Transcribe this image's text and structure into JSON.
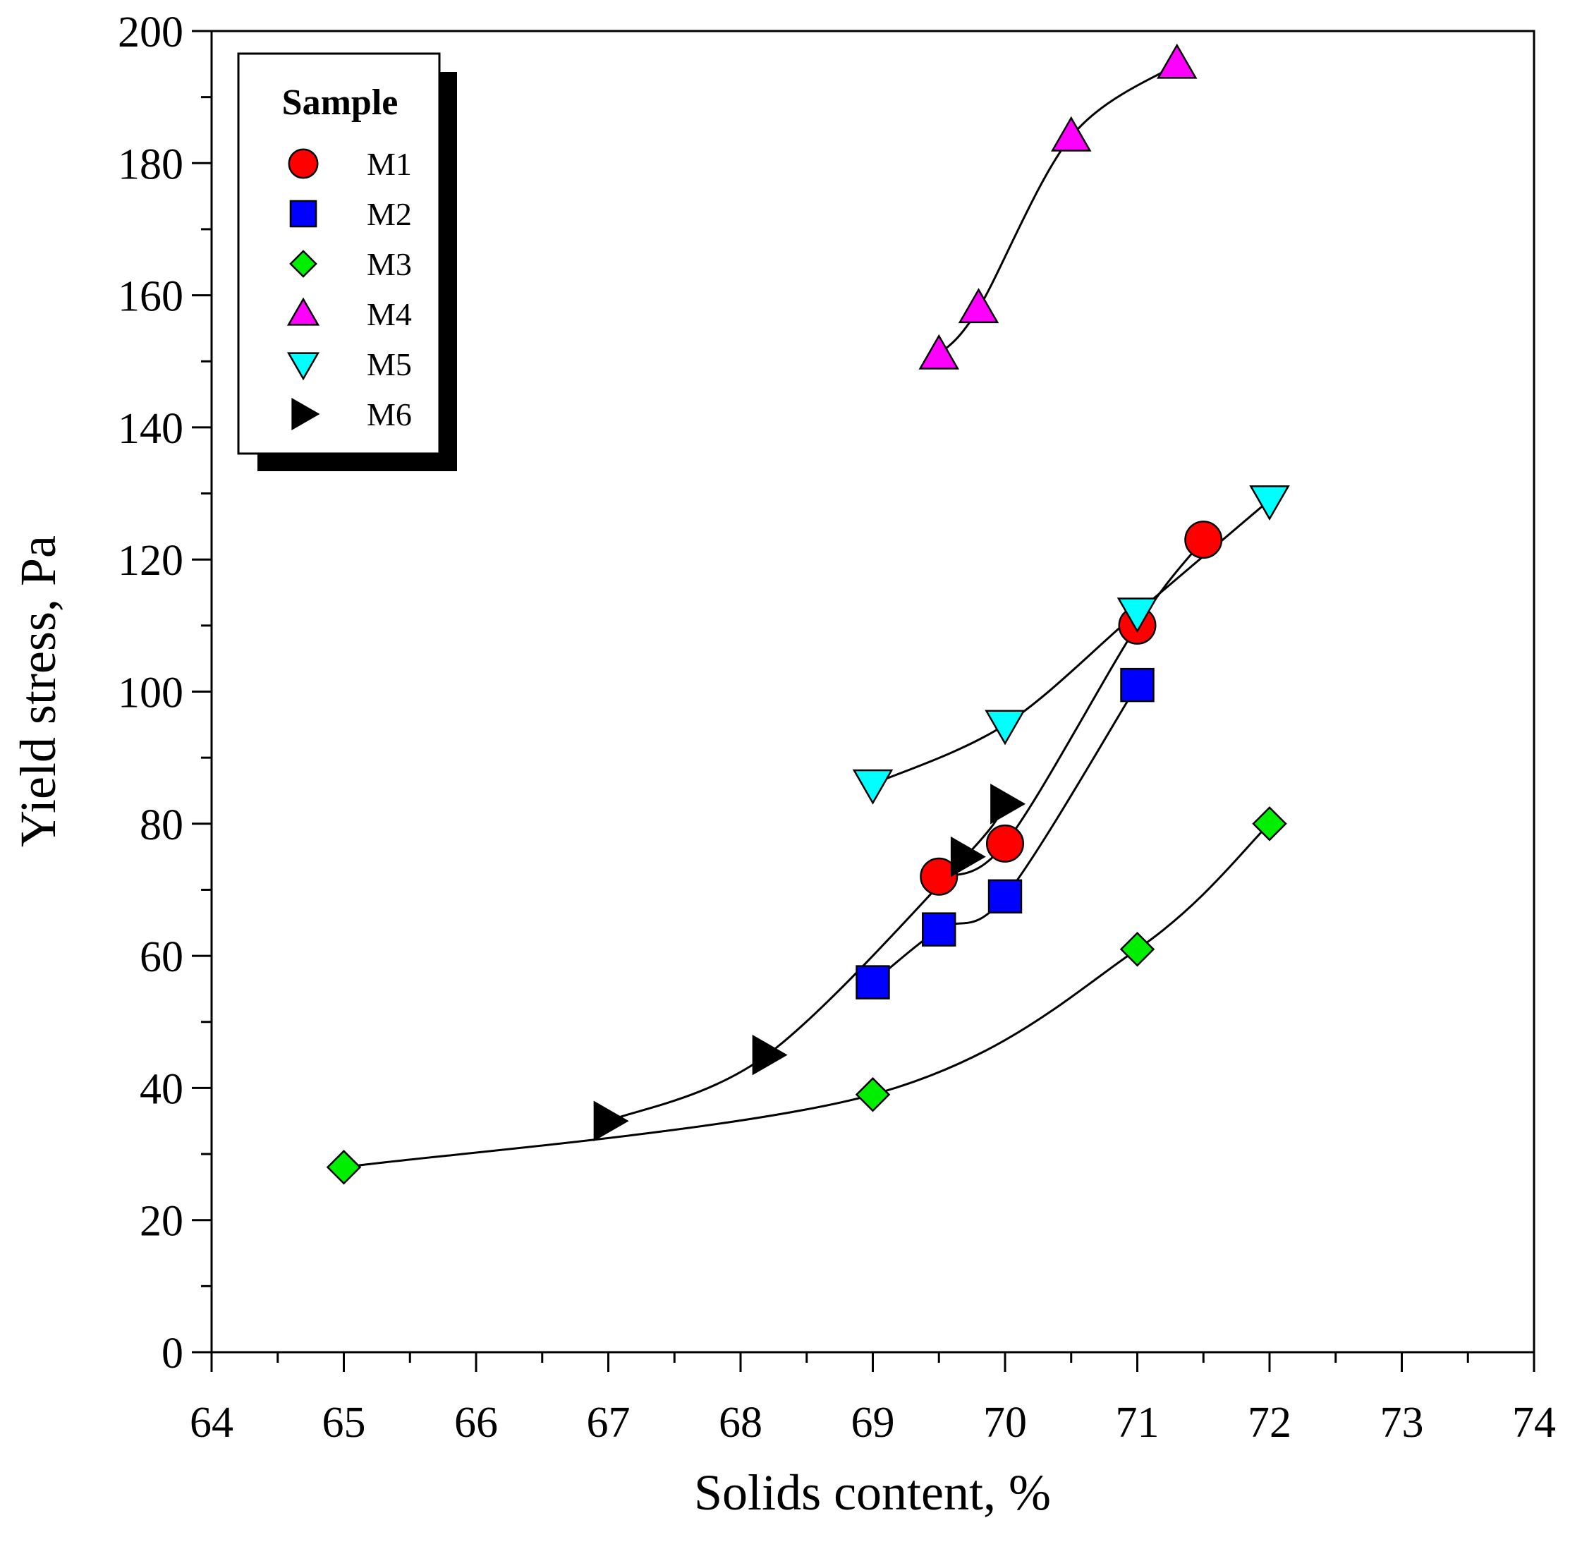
{
  "chart_data": {
    "type": "scatter",
    "title": "",
    "xlabel": "Solids content, %",
    "ylabel": "Yield stress, Pa",
    "xlim": [
      64,
      74
    ],
    "ylim": [
      0,
      200
    ],
    "x_ticks": [
      64,
      65,
      66,
      67,
      68,
      69,
      70,
      71,
      72,
      73,
      74
    ],
    "y_ticks": [
      0,
      20,
      40,
      60,
      80,
      100,
      120,
      140,
      160,
      180,
      200
    ],
    "grid": false,
    "legend": {
      "title": "Sample",
      "position": "top-left"
    },
    "series": [
      {
        "name": "M1",
        "marker": "circle",
        "color": "#ff0000",
        "x": [
          69.5,
          70,
          71,
          71.5
        ],
        "y": [
          72,
          77,
          110,
          123
        ]
      },
      {
        "name": "M2",
        "marker": "square",
        "color": "#0000ff",
        "x": [
          69,
          69.5,
          70,
          71
        ],
        "y": [
          56,
          64,
          69,
          101
        ]
      },
      {
        "name": "M3",
        "marker": "diamond",
        "color": "#00ee00",
        "x": [
          65,
          69,
          71,
          72
        ],
        "y": [
          28,
          39,
          61,
          80
        ]
      },
      {
        "name": "M4",
        "marker": "triangle-up",
        "color": "#ff00ff",
        "x": [
          69.5,
          69.8,
          70.5,
          71.3
        ],
        "y": [
          151,
          158,
          184,
          195
        ]
      },
      {
        "name": "M5",
        "marker": "triangle-down",
        "color": "#00ffff",
        "x": [
          69,
          70,
          71,
          72
        ],
        "y": [
          86,
          95,
          112,
          129
        ]
      },
      {
        "name": "M6",
        "marker": "triangle-right",
        "color": "#000000",
        "x": [
          67,
          68.2,
          69.7,
          70
        ],
        "y": [
          35,
          45,
          75,
          83
        ]
      }
    ]
  }
}
